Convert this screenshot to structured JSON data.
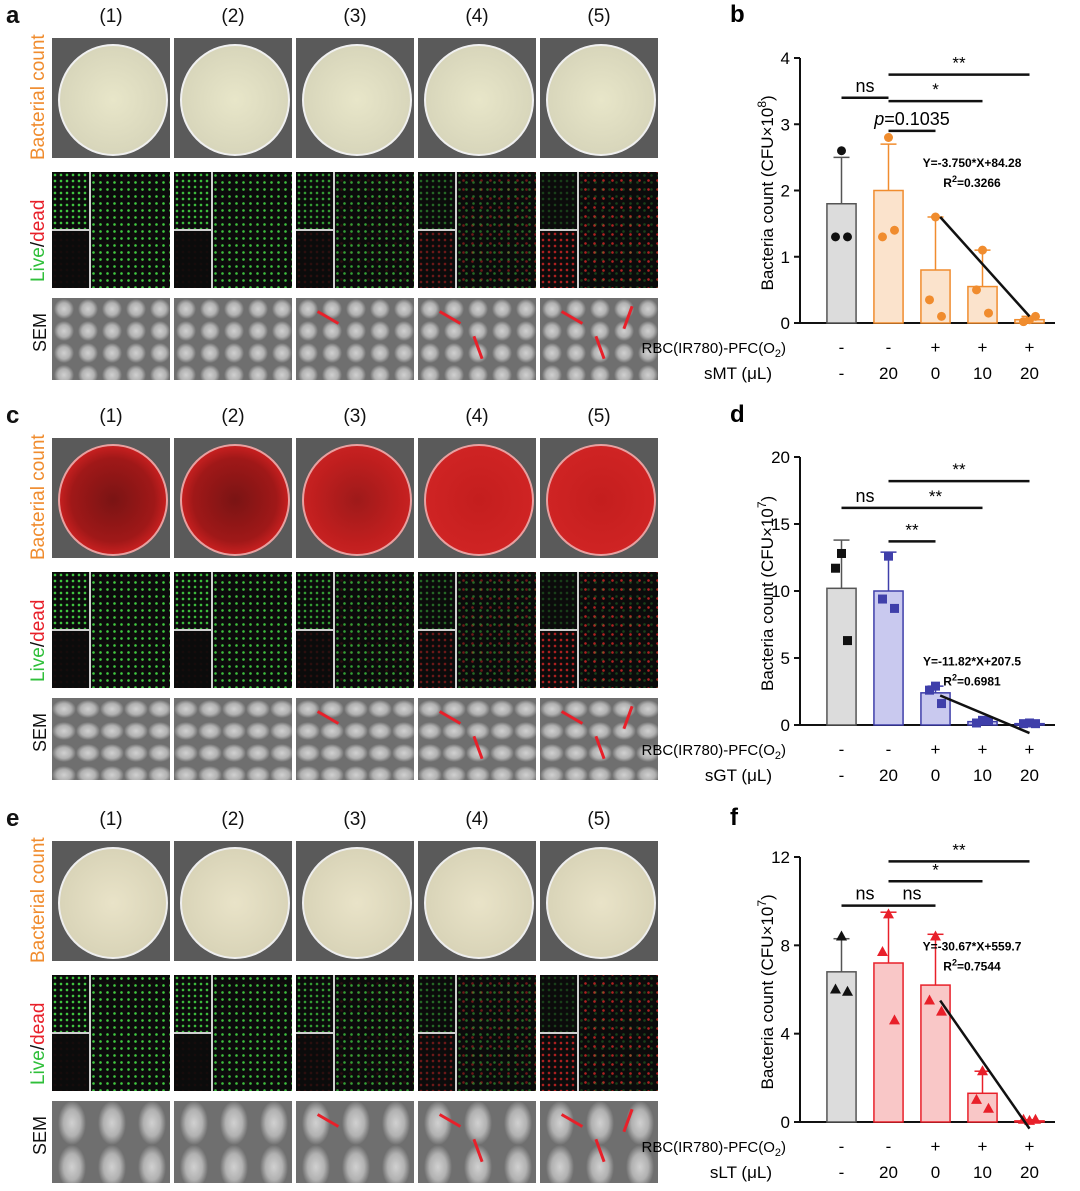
{
  "panels": [
    {
      "letter": "a",
      "theme": "orange_plate"
    },
    {
      "letter": "c",
      "theme": "red_plate"
    },
    {
      "letter": "e",
      "theme": "white_plate"
    }
  ],
  "columns": [
    "(1)",
    "(2)",
    "(3)",
    "(4)",
    "(5)"
  ],
  "row_labels": {
    "count_label": "Bacterial count",
    "live_word": "Live",
    "slash": "/",
    "dead_word": "dead",
    "sem": "SEM"
  },
  "colors": {
    "orange": "#f08c2e",
    "green": "#2fbf3a",
    "red": "#e8202a",
    "gray_bar": "#dcdcdc",
    "orange_bar": "#fbe3cc",
    "blue_bar": "#c9c9ef",
    "red_bar": "#f9c7c7"
  },
  "chart_data": [
    {
      "panel": "b",
      "type": "bar",
      "ylabel_main": "Bacteria count (CFU×10",
      "ylabel_exp": "8",
      "ylabel_tail": ")",
      "ylim": [
        0,
        4
      ],
      "yticks": [
        "0",
        "1",
        "2",
        "3",
        "4"
      ],
      "values": [
        1.8,
        2.0,
        0.8,
        0.55,
        0.05
      ],
      "errors": [
        0.7,
        0.7,
        0.8,
        0.55,
        0.05
      ],
      "points": [
        [
          2.6,
          1.3,
          1.3
        ],
        [
          2.8,
          1.3,
          1.4
        ],
        [
          1.6,
          0.35,
          0.1
        ],
        [
          1.1,
          0.5,
          0.15
        ],
        [
          0.05,
          0.02,
          0.1
        ]
      ],
      "marker": "circle",
      "fill": [
        "#dcdcdc",
        "#fbe3cc",
        "#fbe3cc",
        "#fbe3cc",
        "#fbe3cc"
      ],
      "stroke": [
        "#555555",
        "#f08c2e",
        "#f08c2e",
        "#f08c2e",
        "#f08c2e"
      ],
      "point_color": [
        "#111111",
        "#f08c2e",
        "#f08c2e",
        "#f08c2e",
        "#f08c2e"
      ],
      "row1_label": "RBC(IR780)-PFC(O",
      "row1_sub": "2",
      "row1_tail": ")",
      "row1": [
        "-",
        "-",
        "+",
        "+",
        "+"
      ],
      "row2_label": "sMT (μL)",
      "row2": [
        "-",
        "20",
        "0",
        "10",
        "20"
      ],
      "brackets": [
        {
          "from": 0,
          "to": 1,
          "y": 3.4,
          "text": "ns",
          "italic_p": false
        },
        {
          "from": 1,
          "to": 2,
          "y": 2.9,
          "text": "=0.1035",
          "italic_p": true
        },
        {
          "from": 1,
          "to": 3,
          "y": 3.35,
          "text": "*",
          "italic_p": false
        },
        {
          "from": 1,
          "to": 4,
          "y": 3.75,
          "text": "**",
          "italic_p": false
        }
      ],
      "fit": {
        "eq": "Y=-3.750*X+84.28",
        "r2_pre": "R",
        "r2_exp": "2",
        "r2_tail": "=0.3266",
        "x0": 2.1,
        "y0": 1.6,
        "x1": 4.0,
        "y1": 0.1
      }
    },
    {
      "panel": "d",
      "type": "bar",
      "ylabel_main": "Bacteria count (CFU×10",
      "ylabel_exp": "7",
      "ylabel_tail": ")",
      "ylim": [
        0,
        20
      ],
      "yticks": [
        "0",
        "5",
        "10",
        "15",
        "20"
      ],
      "values": [
        10.2,
        10.0,
        2.4,
        0.25,
        0.1
      ],
      "errors": [
        3.6,
        2.9,
        0.5,
        0.15,
        0.1
      ],
      "points": [
        [
          12.8,
          11.7,
          6.3
        ],
        [
          12.6,
          9.4,
          8.7
        ],
        [
          2.9,
          2.6,
          1.6
        ],
        [
          0.35,
          0.15,
          0.3
        ],
        [
          0.15,
          0.1,
          0.1
        ]
      ],
      "marker": "square",
      "fill": [
        "#dcdcdc",
        "#c9c9ef",
        "#c9c9ef",
        "#c9c9ef",
        "#c9c9ef"
      ],
      "stroke": [
        "#555555",
        "#3f3faa",
        "#3f3faa",
        "#3f3faa",
        "#3f3faa"
      ],
      "point_color": [
        "#111111",
        "#3f3faa",
        "#3f3faa",
        "#3f3faa",
        "#3f3faa"
      ],
      "row1_label": "RBC(IR780)-PFC(O",
      "row1_sub": "2",
      "row1_tail": ")",
      "row1": [
        "-",
        "-",
        "+",
        "+",
        "+"
      ],
      "row2_label": "sGT (μL)",
      "row2": [
        "-",
        "20",
        "0",
        "10",
        "20"
      ],
      "brackets": [
        {
          "from": 0,
          "to": 1,
          "y": 16.2,
          "text": "ns",
          "italic_p": false
        },
        {
          "from": 1,
          "to": 2,
          "y": 13.7,
          "text": "**",
          "italic_p": false
        },
        {
          "from": 1,
          "to": 3,
          "y": 16.2,
          "text": "**",
          "italic_p": false
        },
        {
          "from": 1,
          "to": 4,
          "y": 18.2,
          "text": "**",
          "italic_p": false
        }
      ],
      "fit": {
        "eq": "Y=-11.82*X+207.5",
        "r2_pre": "R",
        "r2_exp": "2",
        "r2_tail": "=0.6981",
        "x0": 2.1,
        "y0": 2.2,
        "x1": 4.0,
        "y1": -0.6
      }
    },
    {
      "panel": "f",
      "type": "bar",
      "ylabel_main": "Bacteria count (CFU×10",
      "ylabel_exp": "7",
      "ylabel_tail": ")",
      "ylim": [
        0,
        12
      ],
      "yticks": [
        "0",
        "4",
        "8",
        "12"
      ],
      "values": [
        6.8,
        7.2,
        6.2,
        1.3,
        0.05
      ],
      "errors": [
        1.5,
        2.3,
        2.3,
        1.0,
        0.05
      ],
      "points": [
        [
          8.4,
          6.0,
          5.9
        ],
        [
          9.4,
          7.7,
          4.6
        ],
        [
          8.4,
          5.5,
          5.0
        ],
        [
          2.3,
          1.0,
          0.6
        ],
        [
          0.05,
          0.1,
          0.1
        ]
      ],
      "marker": "triangle",
      "fill": [
        "#dcdcdc",
        "#f9c7c7",
        "#f9c7c7",
        "#f9c7c7",
        "#f9c7c7"
      ],
      "stroke": [
        "#555555",
        "#e8202a",
        "#e8202a",
        "#e8202a",
        "#e8202a"
      ],
      "point_color": [
        "#111111",
        "#e8202a",
        "#e8202a",
        "#e8202a",
        "#e8202a"
      ],
      "row1_label": "RBC(IR780)-PFC(O",
      "row1_sub": "2",
      "row1_tail": ")",
      "row1": [
        "-",
        "-",
        "+",
        "+",
        "+"
      ],
      "row2_label": "sLT (μL)",
      "row2": [
        "-",
        "20",
        "0",
        "10",
        "20"
      ],
      "brackets": [
        {
          "from": 0,
          "to": 1,
          "y": 9.8,
          "text": "ns",
          "italic_p": false
        },
        {
          "from": 1,
          "to": 2,
          "y": 9.8,
          "text": "ns",
          "italic_p": false
        },
        {
          "from": 1,
          "to": 3,
          "y": 10.9,
          "text": "*",
          "italic_p": false
        },
        {
          "from": 1,
          "to": 4,
          "y": 11.8,
          "text": "**",
          "italic_p": false
        }
      ],
      "fit": {
        "eq": "Y=-30.67*X+559.7",
        "r2_pre": "R",
        "r2_exp": "2",
        "r2_tail": "=0.7544",
        "x0": 2.1,
        "y0": 5.5,
        "x1": 4.0,
        "y1": -0.3
      }
    }
  ]
}
